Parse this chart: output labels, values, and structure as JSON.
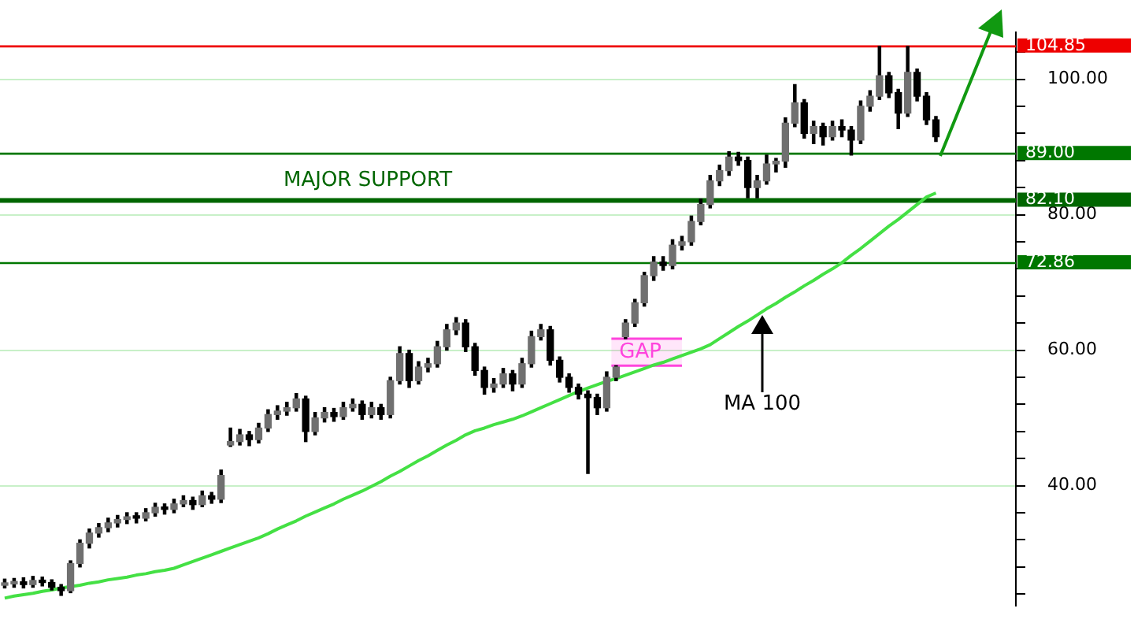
{
  "chart_data": {
    "type": "candlestick",
    "categories": [
      null,
      null,
      null,
      null,
      null,
      null,
      null,
      null,
      null,
      null,
      null,
      null,
      null,
      null,
      null,
      null,
      null,
      null,
      null,
      null,
      null,
      null,
      null,
      null,
      null,
      null,
      null,
      null,
      null,
      null,
      null,
      null,
      null,
      null,
      null,
      null,
      null,
      null,
      null,
      null,
      null,
      null,
      null,
      null,
      null,
      null,
      null,
      null,
      null,
      null,
      null,
      null,
      null,
      null,
      null,
      null,
      null,
      null,
      null,
      null,
      null,
      null,
      null,
      null,
      null,
      null,
      null,
      null,
      null,
      null,
      null,
      null,
      null,
      null,
      null,
      null,
      null,
      null,
      null,
      null,
      null,
      null,
      null,
      null,
      null,
      null,
      null,
      null,
      null,
      null,
      null,
      null,
      null,
      null,
      null,
      null,
      null,
      null,
      null,
      null,
      null,
      null,
      null,
      null,
      null,
      null,
      null,
      null
    ],
    "ohlc": [
      [
        25.3,
        26.2,
        24.9,
        25.5
      ],
      [
        25.5,
        26.3,
        25.0,
        25.8
      ],
      [
        25.8,
        26.4,
        24.9,
        25.4
      ],
      [
        25.4,
        26.6,
        25.0,
        26.0
      ],
      [
        26.0,
        26.5,
        25.2,
        25.7
      ],
      [
        25.7,
        26.1,
        24.6,
        25.0
      ],
      [
        25.0,
        25.4,
        23.8,
        24.5
      ],
      [
        24.5,
        28.9,
        24.2,
        28.5
      ],
      [
        28.5,
        32.0,
        28.0,
        31.5
      ],
      [
        31.5,
        33.6,
        30.8,
        33.0
      ],
      [
        33.0,
        34.4,
        32.4,
        33.8
      ],
      [
        33.8,
        35.2,
        33.2,
        34.5
      ],
      [
        34.5,
        35.6,
        33.9,
        35.0
      ],
      [
        35.0,
        36.0,
        34.4,
        35.4
      ],
      [
        35.4,
        36.0,
        34.5,
        35.2
      ],
      [
        35.2,
        36.6,
        34.8,
        36.0
      ],
      [
        36.0,
        37.4,
        35.5,
        36.8
      ],
      [
        36.8,
        37.3,
        35.8,
        36.5
      ],
      [
        36.5,
        38.0,
        36.0,
        37.3
      ],
      [
        37.3,
        38.5,
        36.9,
        37.8
      ],
      [
        37.8,
        38.3,
        36.5,
        37.2
      ],
      [
        37.2,
        39.2,
        36.9,
        38.5
      ],
      [
        38.5,
        39.0,
        37.4,
        38.0
      ],
      [
        38.0,
        42.3,
        37.5,
        41.5
      ],
      [
        46.0,
        48.5,
        45.8,
        46.5
      ],
      [
        46.5,
        48.3,
        46.0,
        47.5
      ],
      [
        47.5,
        48.0,
        45.9,
        46.8
      ],
      [
        46.8,
        49.2,
        46.3,
        48.5
      ],
      [
        48.5,
        51.2,
        48.0,
        50.5
      ],
      [
        50.5,
        51.8,
        49.8,
        51.0
      ],
      [
        51.0,
        52.3,
        50.4,
        51.5
      ],
      [
        51.5,
        53.6,
        51.0,
        52.8
      ],
      [
        52.8,
        53.2,
        46.5,
        48.0
      ],
      [
        48.0,
        50.8,
        47.5,
        50.0
      ],
      [
        50.0,
        51.5,
        49.4,
        50.8
      ],
      [
        50.8,
        51.4,
        49.5,
        50.2
      ],
      [
        50.2,
        52.3,
        49.8,
        51.5
      ],
      [
        51.5,
        52.8,
        51.0,
        52.0
      ],
      [
        52.0,
        52.5,
        49.8,
        50.5
      ],
      [
        50.5,
        52.3,
        50.0,
        51.5
      ],
      [
        51.5,
        52.0,
        49.8,
        50.5
      ],
      [
        50.5,
        56.0,
        50.0,
        55.5
      ],
      [
        55.5,
        60.5,
        55.0,
        59.5
      ],
      [
        59.5,
        60.0,
        54.5,
        55.5
      ],
      [
        55.5,
        58.3,
        55.0,
        57.5
      ],
      [
        57.5,
        58.8,
        56.8,
        58.0
      ],
      [
        58.0,
        61.3,
        57.5,
        60.5
      ],
      [
        60.5,
        63.8,
        60.0,
        63.0
      ],
      [
        63.0,
        64.8,
        62.3,
        64.0
      ],
      [
        64.0,
        64.5,
        59.8,
        60.5
      ],
      [
        60.5,
        61.0,
        56.3,
        57.0
      ],
      [
        57.0,
        57.5,
        53.5,
        54.5
      ],
      [
        54.5,
        55.8,
        53.8,
        55.0
      ],
      [
        55.0,
        57.3,
        54.5,
        56.5
      ],
      [
        56.5,
        57.0,
        54.0,
        55.0
      ],
      [
        55.0,
        58.8,
        54.5,
        58.0
      ],
      [
        58.0,
        62.8,
        57.5,
        62.0
      ],
      [
        62.0,
        63.8,
        61.5,
        63.0
      ],
      [
        63.0,
        63.5,
        57.8,
        58.5
      ],
      [
        58.5,
        59.0,
        55.3,
        56.0
      ],
      [
        56.0,
        56.5,
        53.8,
        54.5
      ],
      [
        54.5,
        55.0,
        52.8,
        53.5
      ],
      [
        53.5,
        54.0,
        41.8,
        53.0
      ],
      [
        53.0,
        53.5,
        50.5,
        51.5
      ],
      [
        51.5,
        56.8,
        51.0,
        56.0
      ],
      [
        56.0,
        57.7,
        55.5,
        57.5
      ],
      [
        62.0,
        64.5,
        61.7,
        64.0
      ],
      [
        64.0,
        67.5,
        63.5,
        67.0
      ],
      [
        67.0,
        71.5,
        66.5,
        71.0
      ],
      [
        71.0,
        73.8,
        70.3,
        73.0
      ],
      [
        73.0,
        73.8,
        71.8,
        72.5
      ],
      [
        72.5,
        76.3,
        72.0,
        75.5
      ],
      [
        75.5,
        76.8,
        74.8,
        76.0
      ],
      [
        76.0,
        79.8,
        75.5,
        79.0
      ],
      [
        79.0,
        82.3,
        78.5,
        81.5
      ],
      [
        81.5,
        85.8,
        81.0,
        85.0
      ],
      [
        85.0,
        87.3,
        84.3,
        86.5
      ],
      [
        86.5,
        89.3,
        85.8,
        88.5
      ],
      [
        88.5,
        89.2,
        87.3,
        88.0
      ],
      [
        88.0,
        88.5,
        82.5,
        84.0
      ],
      [
        84.0,
        85.8,
        82.5,
        85.0
      ],
      [
        85.0,
        88.8,
        84.5,
        87.5
      ],
      [
        87.5,
        88.3,
        86.3,
        87.9
      ],
      [
        87.9,
        94.3,
        87.0,
        93.5
      ],
      [
        93.5,
        99.2,
        93.0,
        96.5
      ],
      [
        96.5,
        97.0,
        91.3,
        92.0
      ],
      [
        92.0,
        93.8,
        90.5,
        93.0
      ],
      [
        93.0,
        93.5,
        90.3,
        91.5
      ],
      [
        91.5,
        93.8,
        91.0,
        93.0
      ],
      [
        93.0,
        94.0,
        91.5,
        92.5
      ],
      [
        92.5,
        93.0,
        88.8,
        91.0
      ],
      [
        91.0,
        96.8,
        90.5,
        96.0
      ],
      [
        96.0,
        98.3,
        95.3,
        97.5
      ],
      [
        97.5,
        104.85,
        97.0,
        100.5
      ],
      [
        100.5,
        101.0,
        97.3,
        98.0
      ],
      [
        98.0,
        98.5,
        92.7,
        95.0
      ],
      [
        95.0,
        104.85,
        94.5,
        101.0
      ],
      [
        101.0,
        101.5,
        96.8,
        97.5
      ],
      [
        97.5,
        98.0,
        93.3,
        94.0
      ],
      [
        94.0,
        94.5,
        90.8,
        91.5
      ],
      null,
      null,
      null,
      null,
      null,
      null,
      null,
      null
    ],
    "series": [
      {
        "name": "MA 100",
        "type": "line",
        "color": "#44e044",
        "values": [
          23.4,
          23.7,
          23.9,
          24.1,
          24.4,
          24.6,
          24.9,
          25.1,
          25.3,
          25.6,
          25.8,
          26.1,
          26.3,
          26.5,
          26.8,
          27.0,
          27.3,
          27.5,
          27.8,
          28.3,
          28.8,
          29.3,
          29.8,
          30.3,
          30.8,
          31.3,
          31.8,
          32.3,
          32.9,
          33.6,
          34.2,
          34.8,
          35.5,
          36.1,
          36.7,
          37.3,
          38.0,
          38.6,
          39.2,
          39.9,
          40.6,
          41.4,
          42.1,
          42.9,
          43.7,
          44.4,
          45.2,
          46.0,
          46.7,
          47.5,
          48.1,
          48.5,
          49.0,
          49.4,
          49.8,
          50.3,
          50.9,
          51.5,
          52.1,
          52.7,
          53.3,
          53.9,
          54.4,
          54.9,
          55.4,
          55.8,
          56.3,
          56.8,
          57.3,
          57.8,
          58.2,
          58.7,
          59.2,
          59.7,
          60.2,
          60.8,
          61.7,
          62.6,
          63.5,
          64.3,
          65.2,
          66.1,
          66.9,
          67.8,
          68.6,
          69.5,
          70.3,
          71.2,
          72.0,
          72.9,
          74.0,
          75.0,
          76.1,
          77.2,
          78.3,
          79.3,
          80.4,
          81.5,
          82.6,
          83.2,
          null,
          null,
          null,
          null,
          null,
          null,
          null,
          null
        ]
      }
    ],
    "ylim": [
      22.3,
      106.9
    ],
    "yticks": [
      {
        "value": 24,
        "label": null
      },
      {
        "value": 28,
        "label": null
      },
      {
        "value": 32,
        "label": null
      },
      {
        "value": 36,
        "label": null
      },
      {
        "value": 40,
        "label": "40.00"
      },
      {
        "value": 44,
        "label": null
      },
      {
        "value": 48,
        "label": null
      },
      {
        "value": 52,
        "label": null
      },
      {
        "value": 56,
        "label": null
      },
      {
        "value": 60,
        "label": "60.00"
      },
      {
        "value": 64,
        "label": null
      },
      {
        "value": 68,
        "label": null
      },
      {
        "value": 72,
        "label": null
      },
      {
        "value": 76,
        "label": null
      },
      {
        "value": 80,
        "label": "80.00"
      },
      {
        "value": 84,
        "label": null
      },
      {
        "value": 88,
        "label": null
      },
      {
        "value": 92,
        "label": null
      },
      {
        "value": 96,
        "label": null
      },
      {
        "value": 100,
        "label": "100.00"
      },
      {
        "value": 104,
        "label": null
      }
    ],
    "grid": "y",
    "tick_labels": "y",
    "ref_lines": [
      {
        "axis": "y",
        "value": 104.85,
        "label": "104.85",
        "color": "#ee0000"
      },
      {
        "axis": "y",
        "value": 89.0,
        "label": "89.00",
        "color": "#007700"
      },
      {
        "axis": "y",
        "value": 82.1,
        "label": "82.10",
        "color": "#006600"
      },
      {
        "axis": "y",
        "value": 72.86,
        "label": "72.86",
        "color": "#007700"
      }
    ],
    "annotations": [
      {
        "text": "MAJOR SUPPORT",
        "y": 82.1
      }
    ],
    "bands": [
      {
        "axis": "y",
        "from": 57.7,
        "to": 61.7,
        "label": "GAP",
        "color": "#ff44dd"
      }
    ]
  }
}
